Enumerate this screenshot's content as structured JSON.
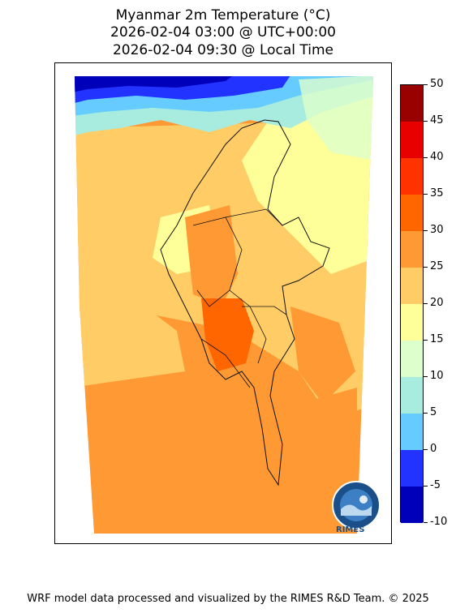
{
  "title": {
    "line1": "Myanmar 2m Temperature (°C)",
    "line2": "2026-02-04 03:00 @ UTC+00:00",
    "line3": "2026-02-04 09:30 @ Local Time"
  },
  "colorbar": {
    "ticks": [
      "50",
      "45",
      "40",
      "35",
      "30",
      "25",
      "20",
      "15",
      "10",
      "5",
      "0",
      "-5",
      "-10"
    ],
    "colors": [
      "#990000",
      "#e80000",
      "#ff3300",
      "#ff6600",
      "#ff9933",
      "#ffcc66",
      "#ffff99",
      "#ddffcc",
      "#a8ebdf",
      "#66ccff",
      "#2233ff",
      "#0000bb"
    ]
  },
  "logo": {
    "text": "RIMES"
  },
  "footer": "WRF model data processed and visualized by the RIMES R&D Team. © 2025",
  "icons": [
    "rimes-logo-icon"
  ]
}
